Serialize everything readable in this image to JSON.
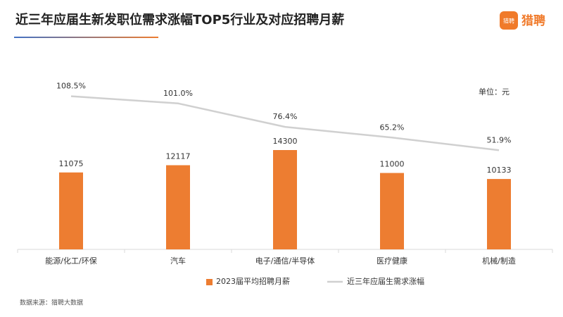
{
  "title": "近三年应届生新发职位需求涨幅TOP5行业及对应招聘月薪",
  "logo": {
    "icon": "猎聘",
    "text": "猎聘"
  },
  "unit": "单位：元",
  "source": "数据来源：猎聘大数据",
  "chart_data": {
    "type": "bar-line",
    "categories": [
      "能源/化工/环保",
      "汽车",
      "电子/通信/半导体",
      "医疗健康",
      "机械/制造"
    ],
    "series": [
      {
        "name": "2023届平均招聘月薪",
        "type": "bar",
        "color": "#ed7d31",
        "values": [
          11075,
          12117,
          14300,
          11000,
          10133
        ]
      },
      {
        "name": "近三年应届生需求涨幅",
        "type": "line",
        "axis": "y2",
        "color": "#d0d0d0",
        "values": [
          108.5,
          101.0,
          76.4,
          65.2,
          51.9
        ],
        "value_labels": [
          "108.5%",
          "101.0%",
          "76.4%",
          "65.2%",
          "51.9%"
        ]
      }
    ],
    "ylim": [
      0,
      25000
    ],
    "y2lim": [
      -52,
      130
    ],
    "legend": "bottom"
  }
}
